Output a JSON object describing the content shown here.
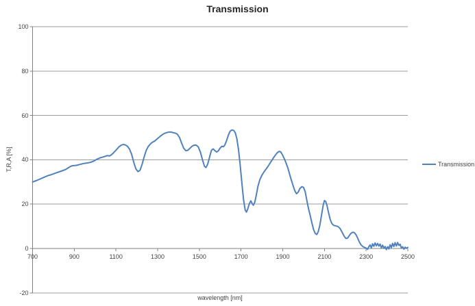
{
  "title": "Transmission",
  "legend": {
    "label": "Transmission"
  },
  "axes": {
    "x": {
      "label": "wavelength [nm]"
    },
    "y": {
      "label": "T,R,A [%]"
    }
  },
  "colors": {
    "line": "#4F81BD",
    "gridline": "#9b9b9b",
    "axis": "#808080",
    "text": "#3f3f3f"
  },
  "chart_data": {
    "type": "line",
    "title": "Transmission",
    "xlabel": "wavelength [nm]",
    "ylabel": "T,R,A [%]",
    "xlim": [
      700,
      2500
    ],
    "ylim": [
      -20,
      100
    ],
    "xticks": [
      700,
      900,
      1100,
      1300,
      1500,
      1700,
      1900,
      2100,
      2300,
      2500
    ],
    "yticks": [
      -20,
      0,
      20,
      40,
      60,
      80,
      100
    ],
    "grid": "horizontal",
    "legend_position": "right",
    "series": [
      {
        "name": "Transmission",
        "color": "#4F81BD",
        "points": [
          [
            700,
            30.0
          ],
          [
            715,
            30.5
          ],
          [
            730,
            31.1
          ],
          [
            745,
            31.7
          ],
          [
            760,
            32.3
          ],
          [
            775,
            32.9
          ],
          [
            790,
            33.3
          ],
          [
            805,
            33.8
          ],
          [
            820,
            34.3
          ],
          [
            835,
            34.8
          ],
          [
            850,
            35.3
          ],
          [
            860,
            35.7
          ],
          [
            870,
            36.3
          ],
          [
            880,
            36.9
          ],
          [
            890,
            37.3
          ],
          [
            900,
            37.4
          ],
          [
            910,
            37.5
          ],
          [
            920,
            37.7
          ],
          [
            935,
            38.1
          ],
          [
            950,
            38.4
          ],
          [
            965,
            38.6
          ],
          [
            980,
            38.9
          ],
          [
            995,
            39.5
          ],
          [
            1010,
            40.3
          ],
          [
            1025,
            40.9
          ],
          [
            1040,
            41.3
          ],
          [
            1052,
            41.7
          ],
          [
            1060,
            41.9
          ],
          [
            1068,
            41.7
          ],
          [
            1076,
            42.1
          ],
          [
            1085,
            42.8
          ],
          [
            1095,
            43.8
          ],
          [
            1105,
            44.8
          ],
          [
            1115,
            45.9
          ],
          [
            1125,
            46.6
          ],
          [
            1135,
            46.9
          ],
          [
            1145,
            46.7
          ],
          [
            1155,
            46.1
          ],
          [
            1165,
            44.8
          ],
          [
            1175,
            42.5
          ],
          [
            1185,
            39.0
          ],
          [
            1195,
            36.0
          ],
          [
            1205,
            34.7
          ],
          [
            1215,
            35.2
          ],
          [
            1225,
            37.8
          ],
          [
            1235,
            41.2
          ],
          [
            1245,
            44.2
          ],
          [
            1255,
            46.0
          ],
          [
            1265,
            47.1
          ],
          [
            1275,
            47.9
          ],
          [
            1285,
            48.4
          ],
          [
            1295,
            49.2
          ],
          [
            1305,
            50.0
          ],
          [
            1315,
            50.8
          ],
          [
            1325,
            51.5
          ],
          [
            1335,
            52.0
          ],
          [
            1345,
            52.3
          ],
          [
            1355,
            52.5
          ],
          [
            1365,
            52.5
          ],
          [
            1375,
            52.2
          ],
          [
            1385,
            52.0
          ],
          [
            1395,
            51.5
          ],
          [
            1405,
            50.0
          ],
          [
            1415,
            47.5
          ],
          [
            1425,
            45.2
          ],
          [
            1435,
            44.1
          ],
          [
            1445,
            44.3
          ],
          [
            1455,
            45.2
          ],
          [
            1465,
            46.1
          ],
          [
            1475,
            46.6
          ],
          [
            1485,
            46.6
          ],
          [
            1495,
            45.8
          ],
          [
            1505,
            43.5
          ],
          [
            1515,
            40.0
          ],
          [
            1525,
            37.0
          ],
          [
            1532,
            36.5
          ],
          [
            1540,
            38.0
          ],
          [
            1550,
            41.5
          ],
          [
            1558,
            44.3
          ],
          [
            1566,
            44.9
          ],
          [
            1575,
            44.1
          ],
          [
            1583,
            43.5
          ],
          [
            1591,
            44.0
          ],
          [
            1600,
            45.3
          ],
          [
            1608,
            46.1
          ],
          [
            1615,
            45.9
          ],
          [
            1622,
            46.6
          ],
          [
            1630,
            48.5
          ],
          [
            1640,
            51.3
          ],
          [
            1648,
            52.9
          ],
          [
            1656,
            53.4
          ],
          [
            1664,
            53.3
          ],
          [
            1672,
            52.3
          ],
          [
            1680,
            49.5
          ],
          [
            1688,
            44.5
          ],
          [
            1696,
            37.5
          ],
          [
            1704,
            29.5
          ],
          [
            1712,
            22.0
          ],
          [
            1720,
            17.3
          ],
          [
            1726,
            16.4
          ],
          [
            1732,
            17.8
          ],
          [
            1740,
            20.3
          ],
          [
            1747,
            21.5
          ],
          [
            1753,
            20.3
          ],
          [
            1759,
            19.5
          ],
          [
            1766,
            20.9
          ],
          [
            1773,
            24.0
          ],
          [
            1781,
            28.0
          ],
          [
            1790,
            31.0
          ],
          [
            1800,
            33.0
          ],
          [
            1812,
            34.8
          ],
          [
            1824,
            36.3
          ],
          [
            1836,
            38.0
          ],
          [
            1848,
            39.8
          ],
          [
            1860,
            41.5
          ],
          [
            1872,
            43.0
          ],
          [
            1882,
            43.8
          ],
          [
            1890,
            43.6
          ],
          [
            1900,
            42.0
          ],
          [
            1912,
            39.5
          ],
          [
            1924,
            36.5
          ],
          [
            1936,
            32.5
          ],
          [
            1948,
            28.8
          ],
          [
            1958,
            26.0
          ],
          [
            1966,
            24.7
          ],
          [
            1974,
            25.4
          ],
          [
            1982,
            27.0
          ],
          [
            1992,
            27.9
          ],
          [
            2000,
            27.5
          ],
          [
            2008,
            25.5
          ],
          [
            2016,
            21.5
          ],
          [
            2024,
            17.8
          ],
          [
            2032,
            14.8
          ],
          [
            2040,
            11.5
          ],
          [
            2048,
            8.5
          ],
          [
            2056,
            6.8
          ],
          [
            2063,
            6.3
          ],
          [
            2070,
            7.5
          ],
          [
            2078,
            10.5
          ],
          [
            2086,
            15.0
          ],
          [
            2094,
            19.5
          ],
          [
            2100,
            21.6
          ],
          [
            2106,
            21.2
          ],
          [
            2112,
            19.5
          ],
          [
            2120,
            16.0
          ],
          [
            2128,
            13.0
          ],
          [
            2136,
            11.2
          ],
          [
            2145,
            10.4
          ],
          [
            2155,
            10.2
          ],
          [
            2165,
            9.9
          ],
          [
            2175,
            9.0
          ],
          [
            2185,
            7.3
          ],
          [
            2195,
            5.5
          ],
          [
            2203,
            4.5
          ],
          [
            2211,
            4.7
          ],
          [
            2219,
            5.8
          ],
          [
            2227,
            6.8
          ],
          [
            2235,
            7.3
          ],
          [
            2243,
            7.2
          ],
          [
            2251,
            6.3
          ],
          [
            2259,
            4.8
          ],
          [
            2267,
            3.0
          ],
          [
            2275,
            1.7
          ],
          [
            2284,
            0.9
          ],
          [
            2292,
            0.5
          ],
          [
            2300,
            0.2
          ],
          [
            2307,
            -0.4
          ],
          [
            2313,
            0.9
          ],
          [
            2319,
            1.6
          ],
          [
            2325,
            0.3
          ],
          [
            2331,
            2.1
          ],
          [
            2337,
            1.0
          ],
          [
            2343,
            2.5
          ],
          [
            2349,
            1.2
          ],
          [
            2355,
            2.3
          ],
          [
            2361,
            1.1
          ],
          [
            2367,
            2.0
          ],
          [
            2373,
            0.3
          ],
          [
            2379,
            1.5
          ],
          [
            2385,
            0.1
          ],
          [
            2391,
            0.9
          ],
          [
            2397,
            -0.5
          ],
          [
            2403,
            0.8
          ],
          [
            2409,
            -0.2
          ],
          [
            2415,
            1.7
          ],
          [
            2421,
            0.4
          ],
          [
            2427,
            2.3
          ],
          [
            2433,
            0.9
          ],
          [
            2439,
            2.6
          ],
          [
            2445,
            1.1
          ],
          [
            2451,
            2.7
          ],
          [
            2457,
            1.4
          ],
          [
            2463,
            1.9
          ],
          [
            2469,
            0.2
          ],
          [
            2475,
            0.8
          ],
          [
            2481,
            -0.3
          ],
          [
            2487,
            0.6
          ],
          [
            2493,
            0.1
          ],
          [
            2500,
            0.5
          ]
        ]
      }
    ]
  }
}
